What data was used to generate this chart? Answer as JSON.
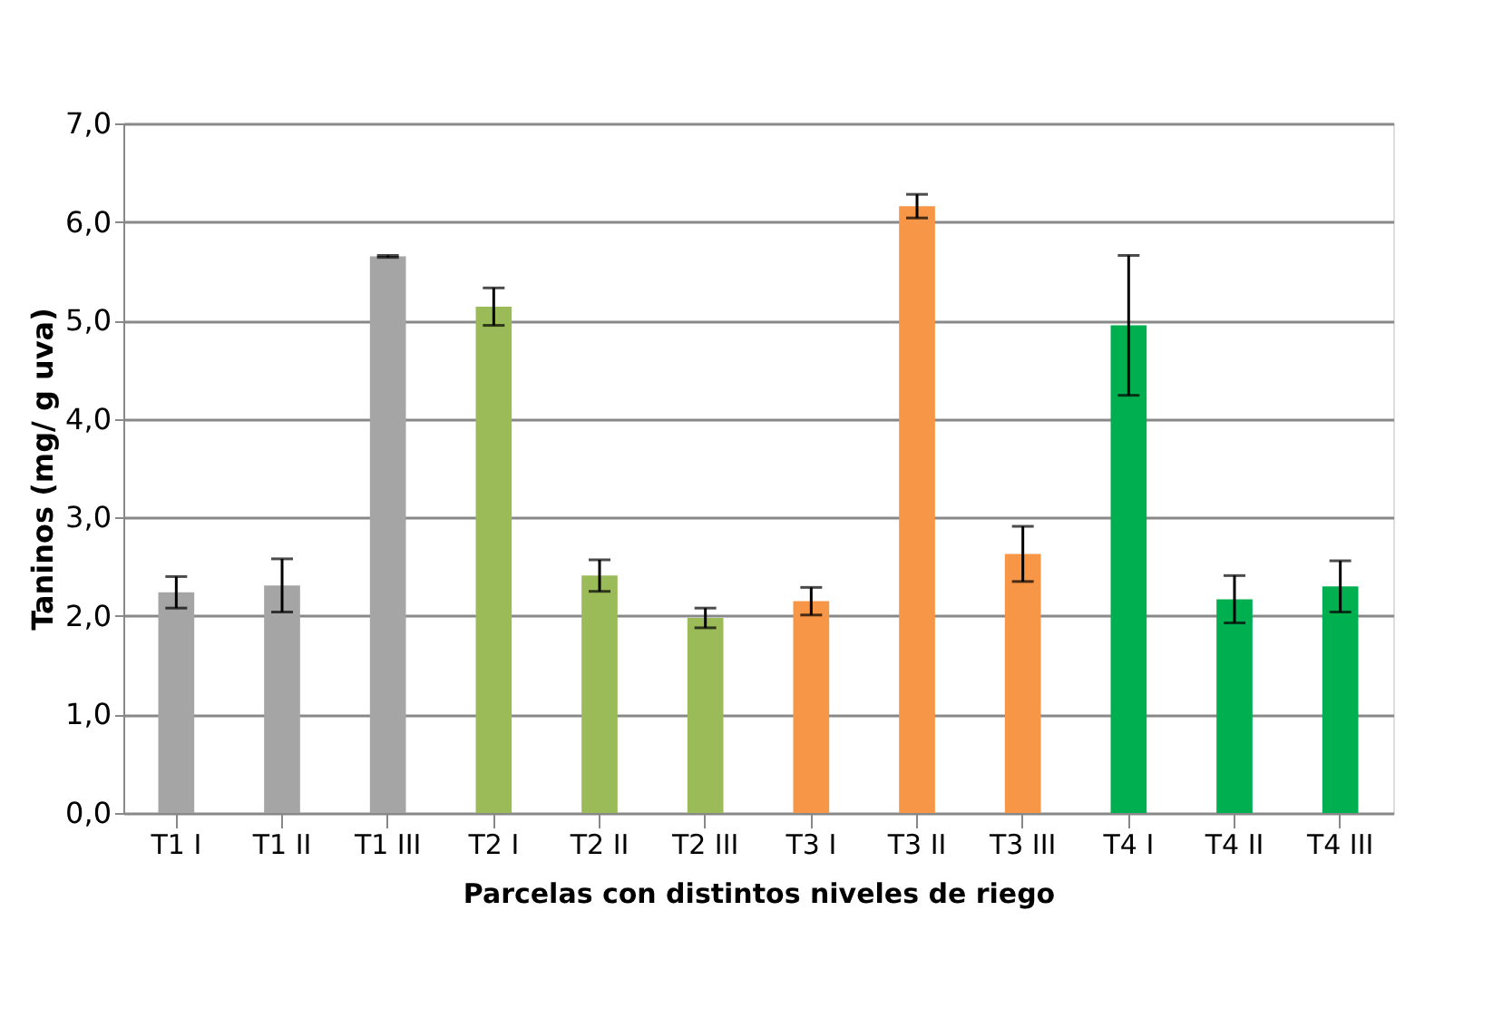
{
  "chart_data": {
    "type": "bar",
    "xlabel": "Parcelas con distintos niveles de riego",
    "ylabel": "Taninos (mg/ g uva)",
    "categories": [
      "T1 I",
      "T1 II",
      "T1 III",
      "T2 I",
      "T2 II",
      "T2 III",
      "T3 I",
      "T3 II",
      "T3 III",
      "T4 I",
      "T4 II",
      "T4 III"
    ],
    "values": [
      2.24,
      2.31,
      5.65,
      5.14,
      2.41,
      1.98,
      2.15,
      6.16,
      2.63,
      4.95,
      2.17,
      2.3
    ],
    "errors": [
      0.16,
      0.27,
      0.01,
      0.19,
      0.16,
      0.1,
      0.14,
      0.12,
      0.28,
      0.71,
      0.24,
      0.26
    ],
    "colors": [
      "#a5a5a5",
      "#a5a5a5",
      "#a5a5a5",
      "#9bbb59",
      "#9bbb59",
      "#9bbb59",
      "#f79646",
      "#f79646",
      "#f79646",
      "#00b050",
      "#00b050",
      "#00b050"
    ],
    "ylim": [
      0,
      7
    ],
    "yticks": [
      {
        "value": 0,
        "label": "0,0"
      },
      {
        "value": 1,
        "label": "1,0"
      },
      {
        "value": 2,
        "label": "2,0"
      },
      {
        "value": 3,
        "label": "3,0"
      },
      {
        "value": 4,
        "label": "4,0"
      },
      {
        "value": 5,
        "label": "5,0"
      },
      {
        "value": 6,
        "label": "6,0"
      },
      {
        "value": 7,
        "label": "7,0"
      }
    ],
    "grid": "y"
  }
}
